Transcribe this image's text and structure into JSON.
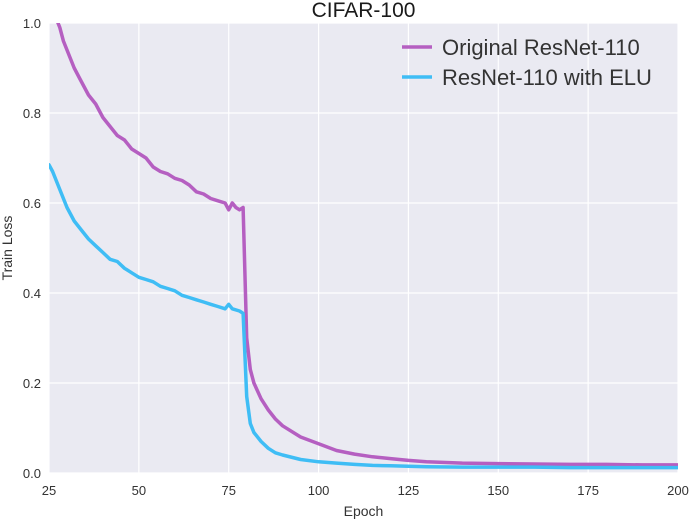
{
  "chart_data": {
    "type": "line",
    "title": "CIFAR-100",
    "xlabel": "Epoch",
    "ylabel": "Train Loss",
    "xlim": [
      25,
      200
    ],
    "ylim": [
      0.0,
      1.0
    ],
    "xticks": [
      "25",
      "50",
      "75",
      "100",
      "125",
      "150",
      "175",
      "200"
    ],
    "yticks": [
      "0.0",
      "0.2",
      "0.4",
      "0.6",
      "0.8",
      "1.0"
    ],
    "grid": true,
    "legend_position": "top-right",
    "series": [
      {
        "name": "Original ResNet-110",
        "color": "#b55fc1",
        "x": [
          25,
          27,
          28,
          29,
          30,
          32,
          34,
          36,
          38,
          40,
          42,
          44,
          46,
          48,
          50,
          52,
          54,
          56,
          58,
          60,
          62,
          64,
          66,
          68,
          70,
          72,
          74,
          75,
          76,
          77,
          78,
          79,
          80,
          81,
          82,
          84,
          86,
          88,
          90,
          95,
          100,
          105,
          110,
          115,
          120,
          125,
          130,
          140,
          150,
          160,
          170,
          180,
          190,
          200
        ],
        "y": [
          1.08,
          1.01,
          0.99,
          0.96,
          0.94,
          0.9,
          0.87,
          0.84,
          0.82,
          0.79,
          0.77,
          0.75,
          0.74,
          0.72,
          0.71,
          0.7,
          0.68,
          0.67,
          0.665,
          0.655,
          0.65,
          0.64,
          0.625,
          0.62,
          0.61,
          0.605,
          0.6,
          0.585,
          0.6,
          0.59,
          0.585,
          0.59,
          0.3,
          0.23,
          0.2,
          0.165,
          0.14,
          0.12,
          0.105,
          0.08,
          0.065,
          0.05,
          0.042,
          0.036,
          0.032,
          0.028,
          0.025,
          0.022,
          0.021,
          0.02,
          0.019,
          0.019,
          0.018,
          0.018
        ]
      },
      {
        "name": "ResNet-110 with ELU",
        "color": "#3fbdf5",
        "x": [
          25,
          26,
          28,
          30,
          32,
          34,
          36,
          38,
          40,
          42,
          44,
          46,
          48,
          50,
          52,
          54,
          56,
          58,
          60,
          62,
          64,
          66,
          68,
          70,
          72,
          74,
          75,
          76,
          78,
          79,
          80,
          81,
          82,
          84,
          86,
          88,
          90,
          95,
          100,
          105,
          110,
          115,
          120,
          125,
          130,
          140,
          150,
          160,
          170,
          180,
          190,
          200
        ],
        "y": [
          0.685,
          0.67,
          0.63,
          0.59,
          0.56,
          0.54,
          0.52,
          0.505,
          0.49,
          0.475,
          0.47,
          0.455,
          0.445,
          0.435,
          0.43,
          0.425,
          0.415,
          0.41,
          0.405,
          0.395,
          0.39,
          0.385,
          0.38,
          0.375,
          0.37,
          0.365,
          0.375,
          0.365,
          0.36,
          0.355,
          0.17,
          0.11,
          0.09,
          0.07,
          0.055,
          0.045,
          0.04,
          0.03,
          0.025,
          0.022,
          0.019,
          0.017,
          0.016,
          0.015,
          0.014,
          0.013,
          0.013,
          0.013,
          0.012,
          0.012,
          0.012,
          0.012
        ]
      }
    ]
  }
}
